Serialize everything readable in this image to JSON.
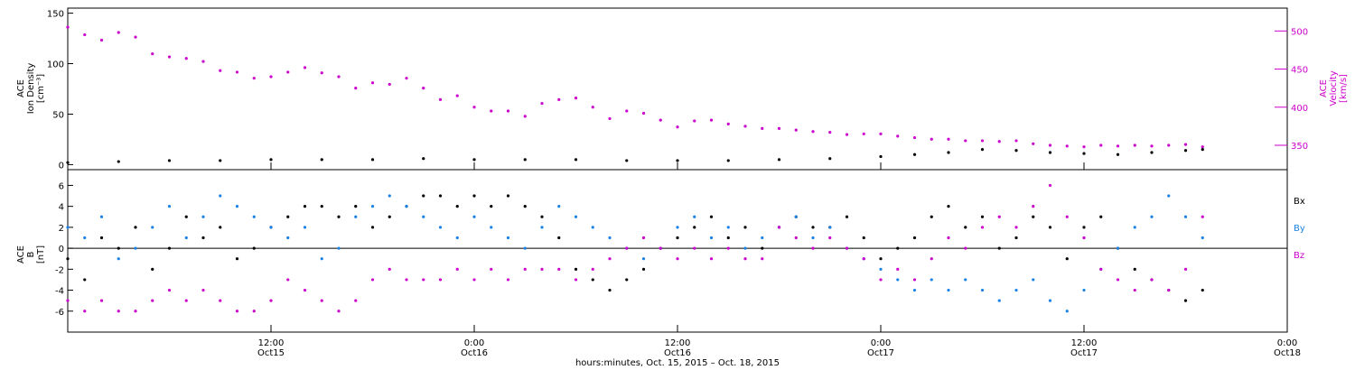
{
  "xaxis": {
    "title": "hours:minutes, Oct. 15, 2015 – Oct. 18, 2015",
    "ticks": [
      {
        "hours": 12,
        "time": "12:00",
        "day": "Oct15"
      },
      {
        "hours": 24,
        "time": "0:00",
        "day": "Oct16"
      },
      {
        "hours": 36,
        "time": "12:00",
        "day": "Oct16"
      },
      {
        "hours": 48,
        "time": "0:00",
        "day": "Oct17"
      },
      {
        "hours": 60,
        "time": "12:00",
        "day": "Oct17"
      },
      {
        "hours": 72,
        "time": "0:00",
        "day": "Oct18"
      }
    ]
  },
  "chart_data": [
    {
      "type": "scatter",
      "title": "",
      "x_unit": "hours since Oct 15, 2015 00:00",
      "x_range": [
        0,
        72
      ],
      "ylabel_left": [
        "ACE",
        "Ion Density",
        "[cm⁻³]"
      ],
      "ylabel_right": [
        "ACE",
        "Velocity",
        "[km/s]"
      ],
      "ylim_left": [
        -5,
        155
      ],
      "ylim_right": [
        318,
        530
      ],
      "left_ticks": [
        0,
        50,
        100,
        150
      ],
      "right_ticks": [
        350,
        400,
        450,
        500
      ],
      "grid": false,
      "series": [
        {
          "name": "Velocity",
          "axis": "right",
          "color": "#cc00cc",
          "x": [
            0,
            1,
            2,
            3,
            4,
            5,
            6,
            7,
            8,
            9,
            10,
            11,
            12,
            13,
            14,
            15,
            16,
            17,
            18,
            19,
            20,
            21,
            22,
            23,
            24,
            25,
            26,
            27,
            28,
            29,
            30,
            31,
            32,
            33,
            34,
            35,
            36,
            37,
            38,
            39,
            40,
            41,
            42,
            43,
            44,
            45,
            46,
            47,
            48,
            49,
            50,
            51,
            52,
            53,
            54,
            55,
            56,
            57,
            58,
            59,
            60,
            61,
            62,
            63,
            64,
            65,
            66,
            67
          ],
          "y": [
            505,
            495,
            488,
            498,
            492,
            470,
            466,
            464,
            460,
            448,
            446,
            438,
            440,
            446,
            452,
            445,
            440,
            425,
            432,
            430,
            438,
            425,
            410,
            415,
            400,
            395,
            395,
            388,
            405,
            410,
            412,
            400,
            385,
            395,
            392,
            383,
            374,
            382,
            383,
            378,
            375,
            372,
            372,
            370,
            368,
            367,
            364,
            365,
            365,
            362,
            360,
            358,
            358,
            356,
            356,
            355,
            356,
            352,
            350,
            349,
            348,
            350,
            349,
            350,
            349,
            350,
            351,
            348
          ]
        },
        {
          "name": "Ion Density",
          "axis": "left",
          "color": "#000000",
          "x": [
            0,
            3,
            6,
            9,
            12,
            15,
            18,
            21,
            24,
            27,
            30,
            33,
            36,
            39,
            42,
            45,
            48,
            50,
            52,
            54,
            56,
            58,
            60,
            62,
            64,
            66,
            67
          ],
          "y": [
            2,
            3,
            4,
            4,
            5,
            5,
            5,
            6,
            5,
            5,
            5,
            4,
            4,
            4,
            5,
            6,
            8,
            10,
            12,
            15,
            14,
            12,
            11,
            10,
            12,
            14,
            15
          ]
        }
      ]
    },
    {
      "type": "scatter",
      "title": "",
      "x_unit": "hours since Oct 15, 2015 00:00",
      "x_range": [
        0,
        72
      ],
      "ylabel_left": [
        "ACE",
        "B",
        "[nT]"
      ],
      "ylim": [
        -8,
        7.5
      ],
      "yticks": [
        -6,
        -4,
        -2,
        0,
        2,
        4,
        6
      ],
      "grid": false,
      "zero_line": true,
      "legend": "right",
      "series": [
        {
          "name": "Bx",
          "color": "#000000",
          "x": [
            0,
            1,
            2,
            3,
            4,
            5,
            6,
            7,
            8,
            9,
            10,
            11,
            12,
            13,
            14,
            15,
            16,
            17,
            18,
            19,
            20,
            21,
            22,
            23,
            24,
            25,
            26,
            27,
            28,
            29,
            30,
            31,
            32,
            33,
            34,
            35,
            36,
            37,
            38,
            39,
            40,
            41,
            42,
            43,
            44,
            45,
            46,
            47,
            48,
            49,
            50,
            51,
            52,
            53,
            54,
            55,
            56,
            57,
            58,
            59,
            60,
            61,
            62,
            63,
            64,
            65,
            66,
            67
          ],
          "y": [
            -1,
            -3,
            1,
            0,
            2,
            -2,
            0,
            3,
            1,
            2,
            -1,
            0,
            2,
            3,
            4,
            4,
            3,
            4,
            2,
            3,
            4,
            5,
            5,
            4,
            5,
            4,
            5,
            4,
            3,
            1,
            -2,
            -3,
            -4,
            -3,
            -2,
            0,
            1,
            2,
            3,
            1,
            2,
            0,
            2,
            3,
            2,
            2,
            3,
            1,
            -1,
            0,
            1,
            3,
            4,
            2,
            3,
            0,
            1,
            3,
            2,
            -1,
            2,
            3,
            0,
            -2,
            -3,
            -4,
            -5,
            -4
          ]
        },
        {
          "name": "By",
          "color": "#1a82e6",
          "x": [
            0,
            1,
            2,
            3,
            4,
            5,
            6,
            7,
            8,
            9,
            10,
            11,
            12,
            13,
            14,
            15,
            16,
            17,
            18,
            19,
            20,
            21,
            22,
            23,
            24,
            25,
            26,
            27,
            28,
            29,
            30,
            31,
            32,
            33,
            34,
            35,
            36,
            37,
            38,
            39,
            40,
            41,
            42,
            43,
            44,
            45,
            46,
            47,
            48,
            49,
            50,
            51,
            52,
            53,
            54,
            55,
            56,
            57,
            58,
            59,
            60,
            61,
            62,
            63,
            64,
            65,
            66,
            67
          ],
          "y": [
            2,
            1,
            3,
            -1,
            0,
            2,
            4,
            1,
            3,
            5,
            4,
            3,
            2,
            1,
            2,
            -1,
            0,
            3,
            4,
            5,
            4,
            3,
            2,
            1,
            3,
            2,
            1,
            0,
            2,
            4,
            3,
            2,
            1,
            0,
            -1,
            0,
            2,
            3,
            1,
            2,
            0,
            1,
            2,
            3,
            1,
            2,
            0,
            -1,
            -2,
            -3,
            -4,
            -3,
            -4,
            -3,
            -4,
            -5,
            -4,
            -3,
            -5,
            -6,
            -4,
            -2,
            0,
            2,
            3,
            5,
            3,
            1
          ]
        },
        {
          "name": "Bz",
          "color": "#cc00cc",
          "x": [
            0,
            1,
            2,
            3,
            4,
            5,
            6,
            7,
            8,
            9,
            10,
            11,
            12,
            13,
            14,
            15,
            16,
            17,
            18,
            19,
            20,
            21,
            22,
            23,
            24,
            25,
            26,
            27,
            28,
            29,
            30,
            31,
            32,
            33,
            34,
            35,
            36,
            37,
            38,
            39,
            40,
            41,
            42,
            43,
            44,
            45,
            46,
            47,
            48,
            49,
            50,
            51,
            52,
            53,
            54,
            55,
            56,
            57,
            58,
            59,
            60,
            61,
            62,
            63,
            64,
            65,
            66,
            67
          ],
          "y": [
            -5,
            -6,
            -5,
            -6,
            -6,
            -5,
            -4,
            -5,
            -4,
            -5,
            -6,
            -6,
            -5,
            -3,
            -4,
            -5,
            -6,
            -5,
            -3,
            -2,
            -3,
            -3,
            -3,
            -2,
            -3,
            -2,
            -3,
            -2,
            -2,
            -2,
            -3,
            -2,
            -1,
            0,
            1,
            0,
            -1,
            0,
            -1,
            0,
            -1,
            -1,
            2,
            1,
            0,
            1,
            0,
            -1,
            -3,
            -2,
            -3,
            -1,
            1,
            0,
            2,
            3,
            2,
            4,
            6,
            3,
            1,
            -2,
            -3,
            -4,
            -3,
            -4,
            -2,
            3
          ]
        }
      ]
    }
  ]
}
